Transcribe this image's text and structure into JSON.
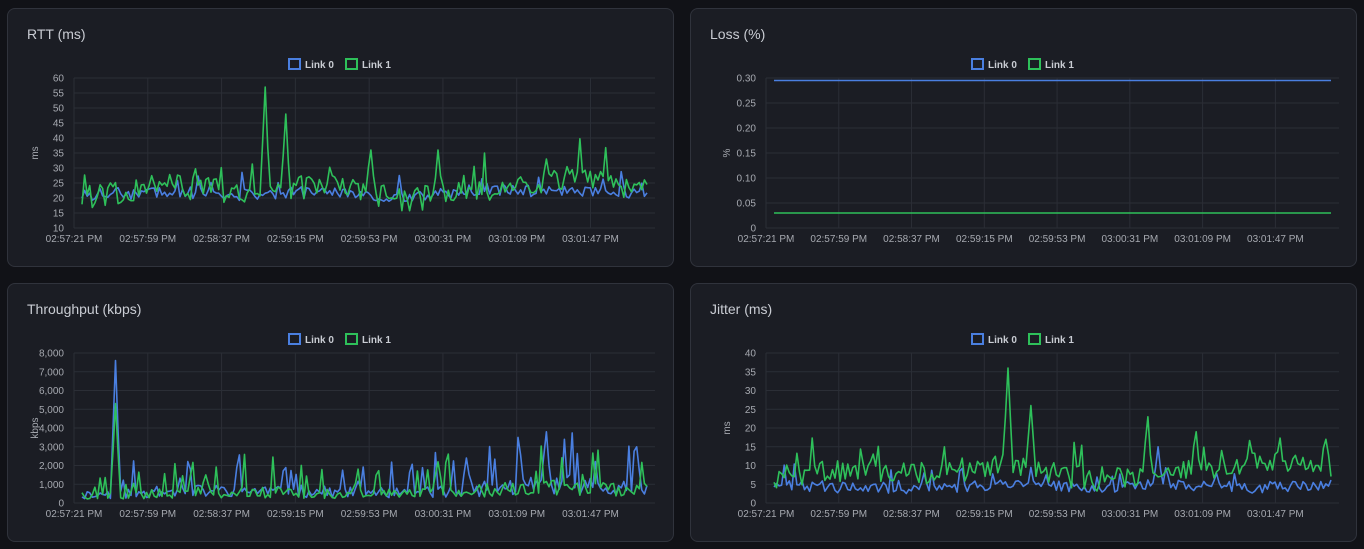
{
  "colors": {
    "link0": "#4a7fe0",
    "link1": "#2ec05a",
    "background": "#111217",
    "panel": "#1b1d24"
  },
  "legend": [
    "Link 0",
    "Link 1"
  ],
  "panels": [
    {
      "id": "rtt",
      "title": "RTT (ms)",
      "ylabel": "ms",
      "xticks": [
        "02:57:21 PM",
        "02:57:59 PM",
        "02:58:37 PM",
        "02:59:15 PM",
        "02:59:53 PM",
        "03:00:31 PM",
        "03:01:09 PM",
        "03:01:47 PM"
      ],
      "yticks": [
        "10",
        "15",
        "20",
        "25",
        "30",
        "35",
        "40",
        "45",
        "50",
        "55",
        "60"
      ]
    },
    {
      "id": "loss",
      "title": "Loss (%)",
      "ylabel": "%",
      "xticks": [
        "02:57:21 PM",
        "02:57:59 PM",
        "02:58:37 PM",
        "02:59:15 PM",
        "02:59:53 PM",
        "03:00:31 PM",
        "03:01:09 PM",
        "03:01:47 PM"
      ],
      "yticks": [
        "0",
        "0.05",
        "0.10",
        "0.15",
        "0.20",
        "0.25",
        "0.30"
      ]
    },
    {
      "id": "throughput",
      "title": "Throughput (kbps)",
      "ylabel": "kbps",
      "xticks": [
        "02:57:21 PM",
        "02:57:59 PM",
        "02:58:37 PM",
        "02:59:15 PM",
        "02:59:53 PM",
        "03:00:31 PM",
        "03:01:09 PM",
        "03:01:47 PM"
      ],
      "yticks": [
        "0",
        "1,000",
        "2,000",
        "3,000",
        "4,000",
        "5,000",
        "6,000",
        "7,000",
        "8,000"
      ]
    },
    {
      "id": "jitter",
      "title": "Jitter (ms)",
      "ylabel": "ms",
      "xticks": [
        "02:57:21 PM",
        "02:57:59 PM",
        "02:58:37 PM",
        "02:59:15 PM",
        "02:59:53 PM",
        "03:00:31 PM",
        "03:01:09 PM",
        "03:01:47 PM"
      ],
      "yticks": [
        "0",
        "5",
        "10",
        "15",
        "20",
        "25",
        "30",
        "35",
        "40"
      ]
    }
  ],
  "chart_data": [
    {
      "type": "line",
      "title": "RTT (ms)",
      "ylabel": "ms",
      "ylim": [
        10,
        60
      ],
      "x": [
        "02:57:21 PM",
        "02:57:59 PM",
        "02:58:37 PM",
        "02:59:15 PM",
        "02:59:53 PM",
        "03:00:31 PM",
        "03:01:09 PM",
        "03:01:47 PM"
      ],
      "series": [
        {
          "name": "Link 0",
          "values": [
            21,
            22,
            21,
            22,
            20,
            23,
            22,
            22
          ]
        },
        {
          "name": "Link 1",
          "values": [
            20,
            24,
            22,
            24,
            19,
            23,
            27,
            22
          ]
        }
      ],
      "peaks": {
        "Link 1": [
          57,
          48,
          36,
          36,
          33
        ]
      }
    },
    {
      "type": "line",
      "title": "Loss (%)",
      "ylabel": "%",
      "ylim": [
        0,
        0.3
      ],
      "x": [
        "02:57:21 PM",
        "02:57:59 PM",
        "02:58:37 PM",
        "02:59:15 PM",
        "02:59:53 PM",
        "03:00:31 PM",
        "03:01:09 PM",
        "03:01:47 PM"
      ],
      "series": [
        {
          "name": "Link 0",
          "values": [
            0.295,
            0.295,
            0.295,
            0.295,
            0.295,
            0.295,
            0.295,
            0.295
          ]
        },
        {
          "name": "Link 1",
          "values": [
            0.03,
            0.03,
            0.03,
            0.03,
            0.03,
            0.03,
            0.03,
            0.03
          ]
        }
      ]
    },
    {
      "type": "line",
      "title": "Throughput (kbps)",
      "ylabel": "kbps",
      "ylim": [
        0,
        8000
      ],
      "x": [
        "02:57:21 PM",
        "02:57:59 PM",
        "02:58:37 PM",
        "02:59:15 PM",
        "02:59:53 PM",
        "03:00:31 PM",
        "03:01:09 PM",
        "03:01:47 PM"
      ],
      "series": [
        {
          "name": "Link 0",
          "values": [
            500,
            700,
            800,
            700,
            600,
            900,
            1200,
            900
          ]
        },
        {
          "name": "Link 1",
          "values": [
            450,
            600,
            700,
            600,
            550,
            800,
            1000,
            800
          ]
        }
      ],
      "peaks": {
        "Link 0": [
          7600,
          3800,
          3000,
          2400
        ],
        "Link 1": [
          5300,
          2200,
          1500
        ]
      }
    },
    {
      "type": "line",
      "title": "Jitter (ms)",
      "ylabel": "ms",
      "ylim": [
        0,
        40
      ],
      "x": [
        "02:57:21 PM",
        "02:57:59 PM",
        "02:58:37 PM",
        "02:59:15 PM",
        "02:59:53 PM",
        "03:00:31 PM",
        "03:01:09 PM",
        "03:01:47 PM"
      ],
      "series": [
        {
          "name": "Link 0",
          "values": [
            5,
            4,
            4,
            5,
            4,
            5,
            4,
            5
          ]
        },
        {
          "name": "Link 1",
          "values": [
            7,
            9,
            8,
            10,
            6,
            8,
            11,
            10
          ]
        }
      ],
      "peaks": {
        "Link 1": [
          36,
          26,
          23,
          19,
          17
        ],
        "Link 0": [
          15
        ]
      }
    }
  ]
}
